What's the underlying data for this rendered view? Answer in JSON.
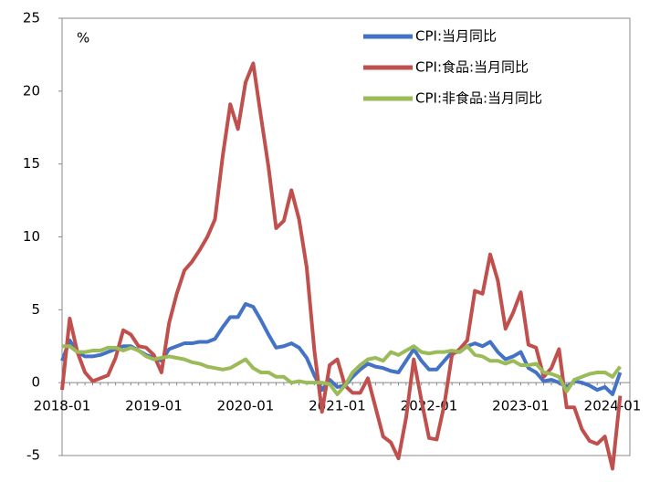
{
  "chart_data": {
    "type": "line",
    "y_label": "%",
    "categories": [
      "2018-01",
      null,
      null,
      null,
      null,
      null,
      null,
      null,
      null,
      null,
      null,
      null,
      "2019-01",
      null,
      null,
      null,
      null,
      null,
      null,
      null,
      null,
      null,
      null,
      null,
      "2020-01",
      null,
      null,
      null,
      null,
      null,
      null,
      null,
      null,
      null,
      null,
      null,
      "2021-01",
      null,
      null,
      null,
      null,
      null,
      null,
      null,
      null,
      null,
      null,
      null,
      "2022-01",
      null,
      null,
      null,
      null,
      null,
      null,
      null,
      null,
      null,
      null,
      null,
      "2023-01",
      null,
      null,
      null,
      null,
      null,
      null,
      null,
      null,
      null,
      null,
      null,
      "2024-01",
      null
    ],
    "series": [
      {
        "name": "CPI:当月同比",
        "color": "#4472c4",
        "values": [
          1.5,
          2.9,
          2.1,
          1.8,
          1.8,
          1.9,
          2.1,
          2.3,
          2.5,
          2.5,
          2.2,
          1.9,
          1.7,
          1.5,
          2.3,
          2.5,
          2.7,
          2.7,
          2.8,
          2.8,
          3.0,
          3.8,
          4.5,
          4.5,
          5.4,
          5.2,
          4.3,
          3.3,
          2.4,
          2.5,
          2.7,
          2.4,
          1.7,
          0.5,
          -0.5,
          0.2,
          -0.3,
          -0.2,
          0.4,
          0.9,
          1.3,
          1.1,
          1.0,
          0.8,
          0.7,
          1.5,
          2.3,
          1.5,
          0.9,
          0.9,
          1.5,
          2.1,
          2.1,
          2.5,
          2.7,
          2.5,
          2.8,
          2.1,
          1.6,
          1.8,
          2.1,
          1.0,
          0.7,
          0.1,
          0.2,
          0.0,
          -0.3,
          0.1,
          0.0,
          -0.2,
          -0.5,
          -0.3,
          -0.8,
          0.7
        ]
      },
      {
        "name": "CPI:食品:当月同比",
        "color": "#c0504d",
        "values": [
          -0.5,
          4.4,
          2.1,
          0.7,
          0.1,
          0.3,
          0.5,
          1.7,
          3.6,
          3.3,
          2.5,
          2.4,
          1.9,
          0.7,
          4.1,
          6.1,
          7.7,
          8.3,
          9.1,
          10.0,
          11.2,
          15.5,
          19.1,
          17.4,
          20.6,
          21.9,
          18.3,
          14.8,
          10.6,
          11.1,
          13.2,
          11.2,
          7.9,
          2.2,
          -2.0,
          1.2,
          1.6,
          -0.2,
          -0.7,
          -0.7,
          0.3,
          -1.7,
          -3.7,
          -4.1,
          -5.2,
          -2.4,
          1.6,
          -1.2,
          -3.8,
          -3.9,
          -1.5,
          1.9,
          2.3,
          2.9,
          6.3,
          6.1,
          8.8,
          7.0,
          3.7,
          4.8,
          6.2,
          2.6,
          2.4,
          0.4,
          1.0,
          2.3,
          -1.7,
          -1.7,
          -3.2,
          -4.0,
          -4.2,
          -3.7,
          -5.9,
          -0.9
        ]
      },
      {
        "name": "CPI:非食品:当月同比",
        "color": "#9bbb59",
        "values": [
          2.5,
          2.5,
          2.1,
          2.1,
          2.2,
          2.2,
          2.4,
          2.4,
          2.2,
          2.4,
          2.2,
          1.8,
          1.6,
          1.7,
          1.8,
          1.7,
          1.6,
          1.4,
          1.3,
          1.1,
          1.0,
          0.9,
          1.0,
          1.3,
          1.6,
          1.0,
          0.7,
          0.7,
          0.4,
          0.4,
          0.0,
          0.1,
          0.0,
          0.0,
          0.0,
          -0.1,
          -0.8,
          -0.2,
          0.7,
          1.2,
          1.6,
          1.7,
          1.5,
          2.1,
          1.9,
          2.2,
          2.5,
          2.1,
          2.0,
          2.1,
          2.1,
          2.2,
          2.1,
          2.5,
          1.9,
          1.8,
          1.5,
          1.5,
          1.3,
          1.5,
          1.2,
          1.2,
          1.3,
          0.7,
          0.6,
          0.4,
          -0.6,
          0.2,
          0.4,
          0.6,
          0.7,
          0.7,
          0.4,
          1.1
        ]
      }
    ],
    "ylim": [
      -5,
      25
    ],
    "yticks": [
      -5,
      0,
      5,
      10,
      15,
      20,
      25
    ],
    "legend": "upper right"
  }
}
